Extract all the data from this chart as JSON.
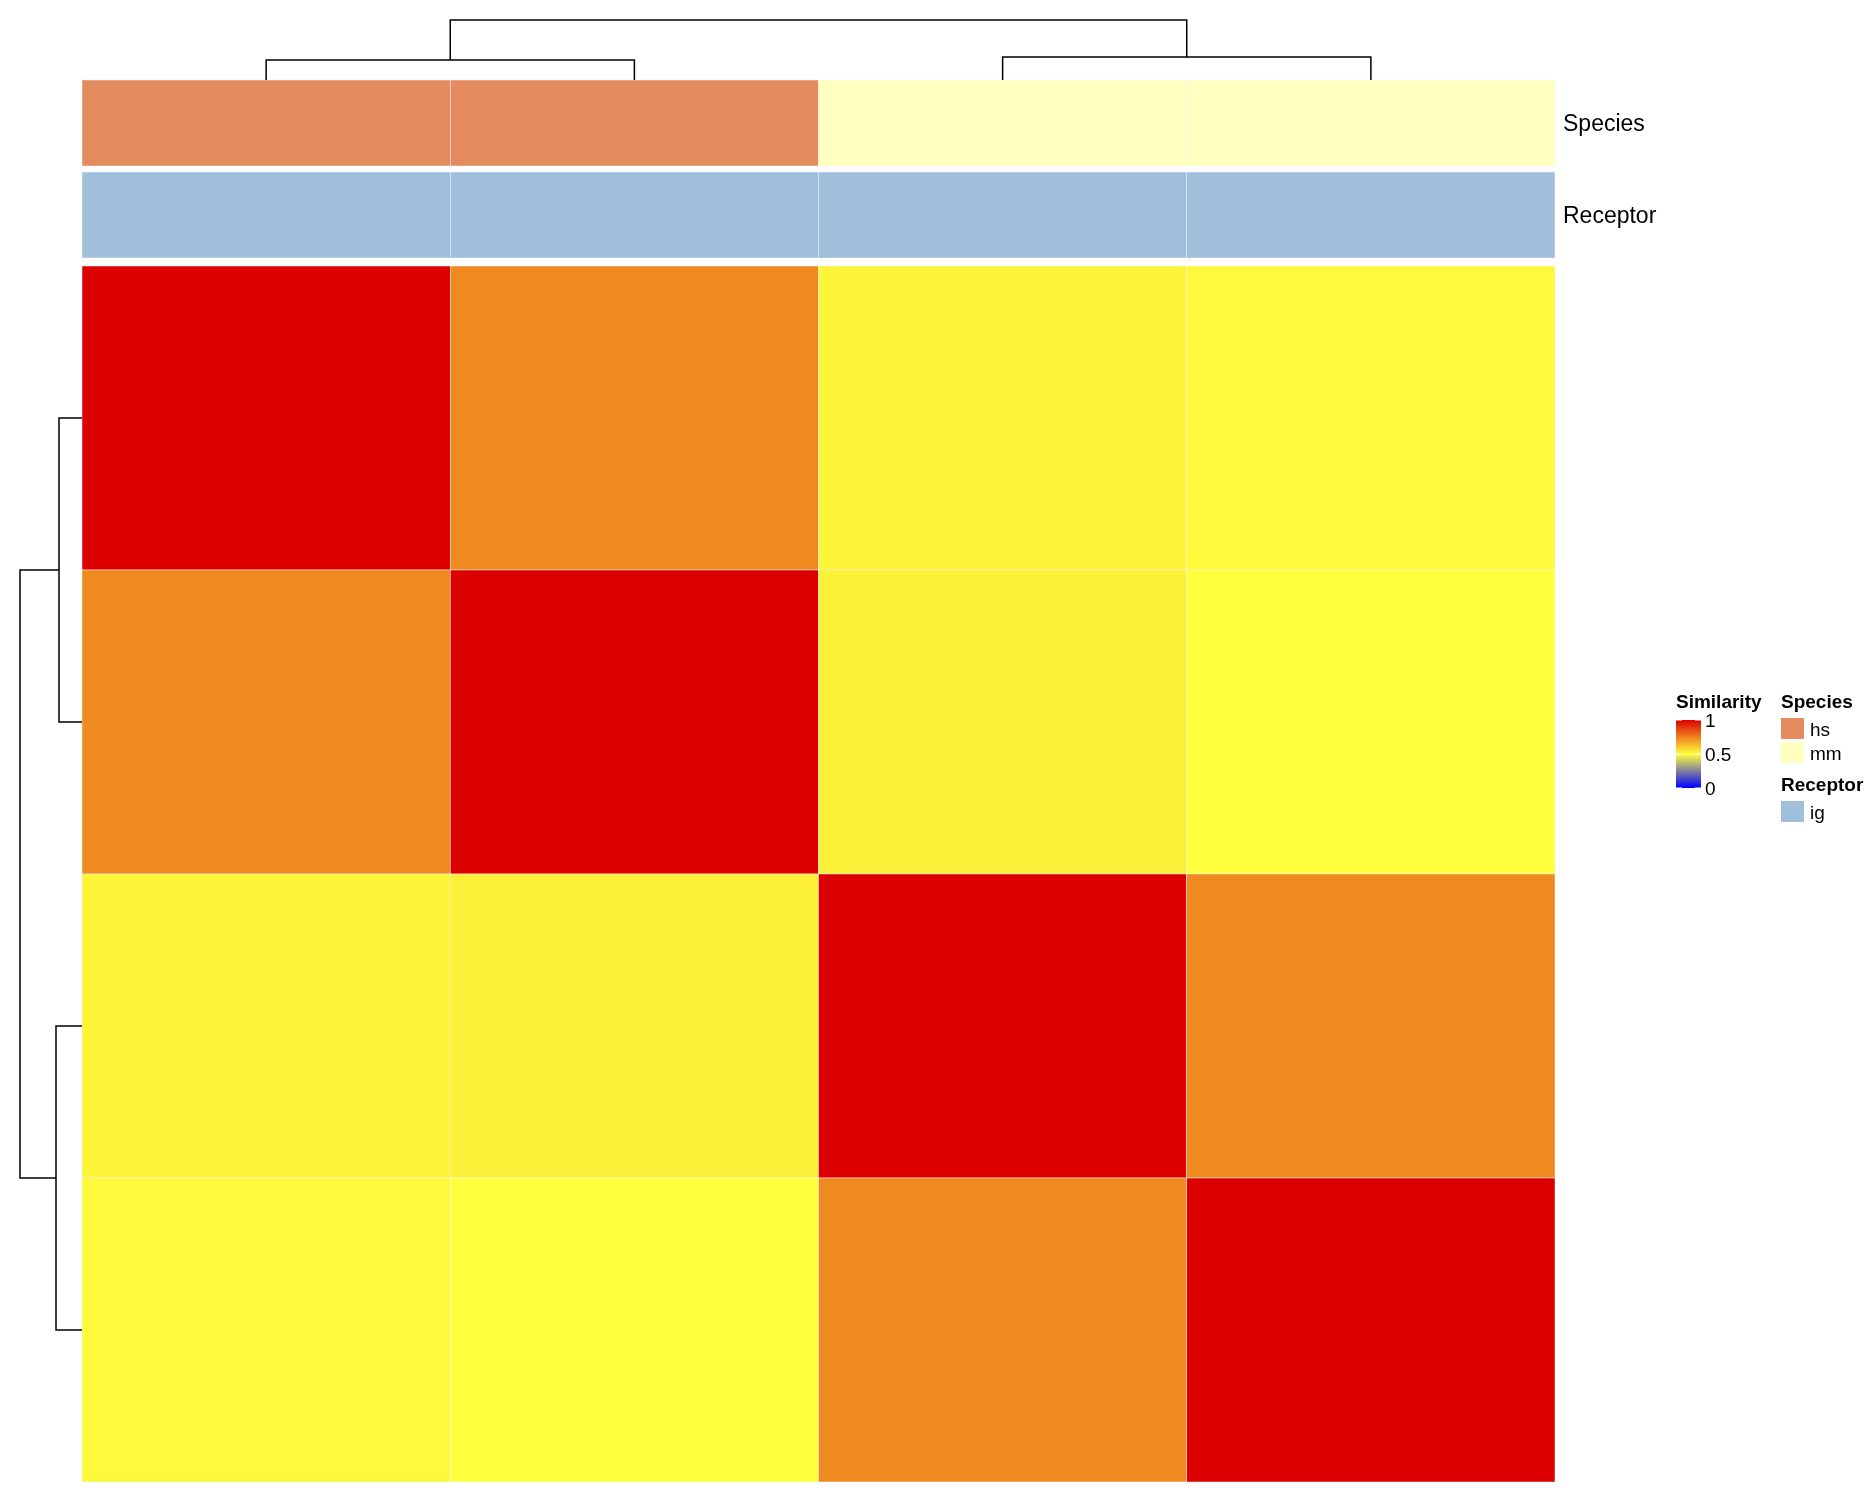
{
  "chart_data": {
    "type": "heatmap",
    "categories": [
      null,
      null,
      null,
      null
    ],
    "y_categories": [
      null,
      null,
      null,
      null
    ],
    "cells": [
      [
        1,
        0.73,
        0.52,
        0.51
      ],
      [
        0.73,
        1,
        0.53,
        0.5
      ],
      [
        0.52,
        0.53,
        1,
        0.73
      ],
      [
        0.51,
        0.5,
        0.73,
        1
      ]
    ],
    "clabel": "Similarity",
    "clim": [
      0,
      1
    ],
    "cticks": [
      0,
      0.5,
      1
    ],
    "tick_labels": false,
    "annotations": [
      "Species",
      "Receptor",
      "Species",
      "hs",
      "mm",
      "Receptor",
      "ig"
    ]
  }
}
